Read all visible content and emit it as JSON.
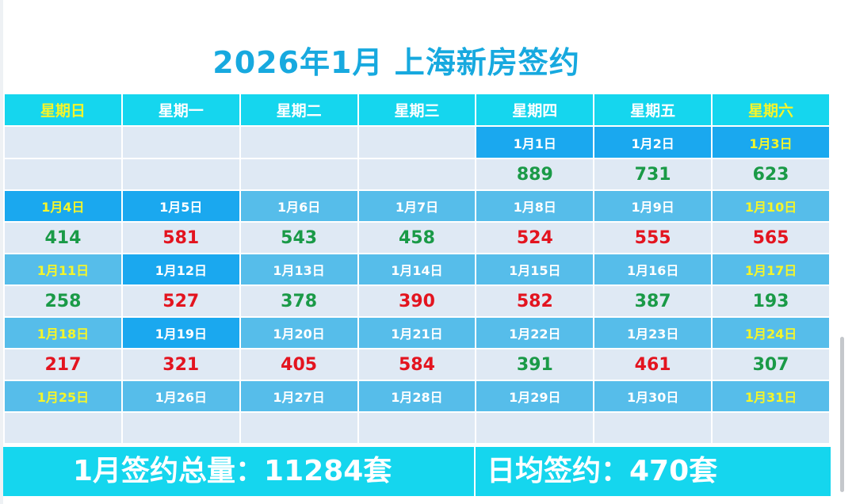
{
  "title": "2026年1月 上海新房签约",
  "weekdays": [
    "星期日",
    "星期一",
    "星期二",
    "星期三",
    "星期四",
    "星期五",
    "星期六"
  ],
  "weeks": [
    {
      "dates": [
        "",
        "",
        "",
        "",
        "1月1日",
        "1月2日",
        "1月3日"
      ],
      "values": [
        "",
        "",
        "",
        "",
        "889",
        "731",
        "623"
      ]
    },
    {
      "dates": [
        "1月4日",
        "1月5日",
        "1月6日",
        "1月7日",
        "1月8日",
        "1月9日",
        "1月10日"
      ],
      "values": [
        "414",
        "581",
        "543",
        "458",
        "524",
        "555",
        "565"
      ]
    },
    {
      "dates": [
        "1月11日",
        "1月12日",
        "1月13日",
        "1月14日",
        "1月15日",
        "1月16日",
        "1月17日"
      ],
      "values": [
        "258",
        "527",
        "378",
        "390",
        "582",
        "387",
        "193"
      ]
    },
    {
      "dates": [
        "1月18日",
        "1月19日",
        "1月20日",
        "1月21日",
        "1月22日",
        "1月23日",
        "1月24日"
      ],
      "values": [
        "217",
        "321",
        "405",
        "584",
        "391",
        "461",
        "307"
      ]
    },
    {
      "dates": [
        "1月25日",
        "1月26日",
        "1月27日",
        "1月28日",
        "1月29日",
        "1月30日",
        "1月31日"
      ],
      "values": [
        "",
        "",
        "",
        "",
        "",
        "",
        ""
      ]
    }
  ],
  "summary": {
    "total": "1月签约总量：11284套",
    "average": "日均签约：470套"
  },
  "colors": {
    "title": "#17a9df",
    "header_bg": "#15d6ee",
    "weekend_text": "#f5f52a",
    "date_bg": "#56bdea",
    "date_highlight_bg": "#1aa8ef",
    "value_bg": "#dfe9f4",
    "value_up": "#1a9a47",
    "value_down": "#e3141f"
  }
}
